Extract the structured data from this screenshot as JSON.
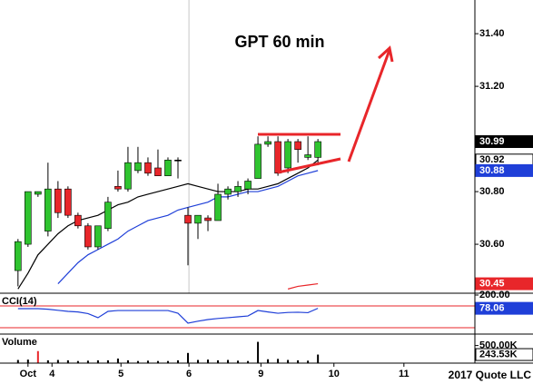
{
  "chart_data": {
    "type": "candlestick",
    "title": "GPT 60 min",
    "x": [
      0,
      1,
      2,
      3,
      4,
      5,
      6,
      7,
      8,
      9,
      10,
      11,
      12,
      13,
      14,
      15,
      16,
      17,
      18,
      19,
      20,
      21,
      22,
      23,
      24,
      25,
      26,
      27,
      28,
      29,
      30
    ],
    "xlim": [
      -1.8,
      45.7
    ],
    "xticks": [
      {
        "value": 1,
        "label": "Oct"
      },
      {
        "value": 3.4,
        "label": "4"
      },
      {
        "value": 10.3,
        "label": "5"
      },
      {
        "value": 17.1,
        "label": "6"
      },
      {
        "value": 24.3,
        "label": "9"
      },
      {
        "value": 31.6,
        "label": "10"
      },
      {
        "value": 38.6,
        "label": "11"
      }
    ],
    "xgrid_ticks": [
      3
    ],
    "ylim": [
      30.414,
      31.528
    ],
    "yticks": [
      {
        "value": 31.4,
        "label": "31.40"
      },
      {
        "value": 31.2,
        "label": "31.20"
      },
      {
        "value": 30.8,
        "label": "30.80"
      },
      {
        "value": 30.6,
        "label": "30.60"
      }
    ],
    "up_color": "#2fc42f",
    "down_color": "#e8262a",
    "open": [
      30.5,
      30.6,
      30.79,
      30.65,
      30.81,
      30.81,
      30.71,
      30.67,
      30.59,
      30.66,
      30.82,
      30.81,
      30.88,
      30.91,
      30.89,
      30.86,
      30.92,
      30.71,
      30.68,
      30.7,
      30.69,
      30.79,
      30.8,
      30.81,
      30.85,
      30.98,
      30.99,
      30.89,
      30.99,
      30.93,
      30.93
    ],
    "high": [
      30.62,
      30.8,
      30.8,
      30.91,
      30.84,
      30.82,
      30.72,
      30.68,
      30.67,
      30.78,
      30.88,
      30.97,
      30.97,
      30.93,
      30.96,
      30.93,
      30.93,
      30.74,
      30.71,
      30.71,
      30.83,
      30.82,
      30.84,
      30.85,
      31.01,
      31.01,
      31.01,
      31.0,
      31.0,
      31.01,
      31.0
    ],
    "low": [
      30.44,
      30.59,
      30.78,
      30.63,
      30.7,
      30.7,
      30.66,
      30.58,
      30.58,
      30.65,
      30.8,
      30.8,
      30.87,
      30.86,
      30.86,
      30.86,
      30.85,
      30.52,
      30.62,
      30.65,
      30.69,
      30.77,
      30.78,
      30.79,
      30.85,
      30.97,
      30.86,
      30.87,
      30.91,
      30.92,
      30.9
    ],
    "close": [
      30.61,
      30.8,
      30.8,
      30.81,
      30.72,
      30.71,
      30.67,
      30.59,
      30.67,
      30.76,
      30.81,
      30.91,
      30.91,
      30.87,
      30.86,
      30.92,
      30.92,
      30.68,
      30.71,
      30.69,
      30.79,
      30.81,
      30.82,
      30.84,
      30.98,
      30.99,
      30.87,
      30.99,
      30.96,
      30.94,
      30.99
    ],
    "last_label": "30.99",
    "series": [
      {
        "color": "#000000",
        "label_bg": "#ffffff",
        "label_fg": "#000000",
        "last_label": "30.92",
        "values": [
          30.43,
          30.49,
          30.56,
          30.6,
          30.64,
          30.67,
          30.69,
          30.7,
          30.71,
          30.73,
          30.75,
          30.76,
          30.78,
          30.79,
          30.8,
          30.81,
          30.82,
          30.83,
          30.82,
          30.81,
          30.8,
          30.8,
          30.8,
          30.81,
          30.81,
          30.82,
          30.83,
          30.85,
          30.87,
          30.89,
          30.92
        ]
      },
      {
        "color": "#1f3fd8",
        "label_bg": "#1f3fd8",
        "label_fg": "#ffffff",
        "last_label": "30.88",
        "values": [
          null,
          null,
          null,
          null,
          30.45,
          30.49,
          30.53,
          30.56,
          30.58,
          30.6,
          30.62,
          30.65,
          30.67,
          30.69,
          30.7,
          30.71,
          30.73,
          30.74,
          30.75,
          30.76,
          30.78,
          30.78,
          30.79,
          30.8,
          30.8,
          30.81,
          30.82,
          30.84,
          30.86,
          30.87,
          30.88
        ]
      },
      {
        "color": "#e8262a",
        "label_bg": "#e8262a",
        "label_fg": "#ffffff",
        "last_label": "30.45",
        "values": [
          null,
          null,
          null,
          null,
          null,
          null,
          null,
          null,
          null,
          null,
          null,
          null,
          null,
          null,
          null,
          null,
          null,
          null,
          null,
          null,
          null,
          null,
          null,
          null,
          null,
          null,
          null,
          30.43,
          30.44,
          30.445,
          30.45
        ]
      }
    ],
    "cci": {
      "title": "CCI(14)",
      "color": "#1f3fd8",
      "ylim": [
        -150,
        200
      ],
      "yticks": [
        {
          "value": 200,
          "label": "200.00"
        }
      ],
      "levels": [
        100,
        -100
      ],
      "level_color": "#e8262a",
      "values": [
        75,
        75,
        75,
        70,
        60,
        50,
        45,
        30,
        -8,
        50,
        58,
        58,
        58,
        58,
        58,
        58,
        33,
        -58,
        -40,
        -25,
        -15,
        -8,
        0,
        8,
        58,
        45,
        33,
        40,
        42,
        38,
        78.06
      ],
      "last_label": "78.06"
    },
    "volume": {
      "title": "Volume",
      "ylim": [
        0,
        800000
      ],
      "yticks": [
        {
          "value": 500000,
          "label": "500.00K"
        }
      ],
      "values": [
        90000,
        100000,
        342000,
        80000,
        90000,
        80000,
        60000,
        70000,
        80000,
        80000,
        130000,
        80000,
        60000,
        70000,
        60000,
        60000,
        80000,
        289000,
        90000,
        100000,
        80000,
        90000,
        70000,
        60000,
        605000,
        110000,
        120000,
        90000,
        80000,
        70000,
        243530
      ],
      "bar_colors": [
        "#000",
        "#000",
        "#e8262a",
        "#000",
        "#000",
        "#000",
        "#000",
        "#000",
        "#000",
        "#000",
        "#000",
        "#000",
        "#000",
        "#000",
        "#000",
        "#000",
        "#000",
        "#000",
        "#000",
        "#000",
        "#000",
        "#000",
        "#000",
        "#000",
        "#000",
        "#000",
        "#000",
        "#000",
        "#000",
        "#000",
        "#000"
      ],
      "last_label": "243.53K"
    },
    "footer": "2017 Quote LLC"
  }
}
